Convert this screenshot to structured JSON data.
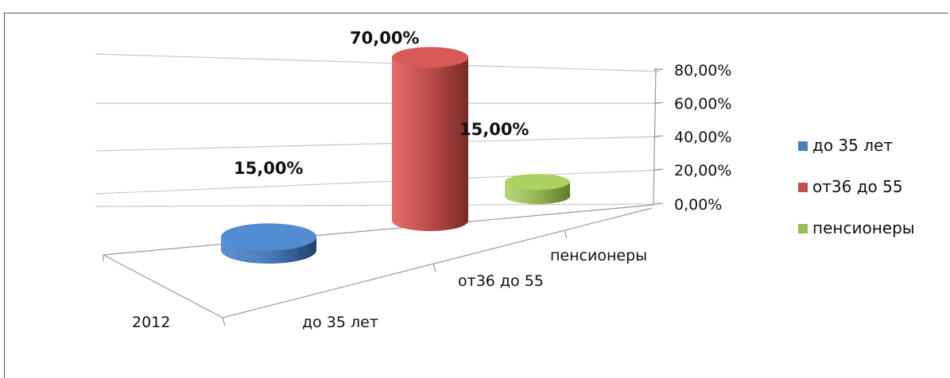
{
  "chart_data": {
    "type": "bar",
    "title": "",
    "xlabel": "",
    "ylabel": "",
    "series_axis": [
      "2012"
    ],
    "categories": [
      "до 35 лет",
      "от36 до 55",
      "пенсионеры"
    ],
    "values": [
      0.15,
      0.7,
      0.15
    ],
    "data_labels": [
      "15,00%",
      "70,00%",
      "15,00%"
    ],
    "colors": [
      "#4a7ebb",
      "#c0504d",
      "#9bbb59"
    ],
    "ylim": [
      0,
      0.8
    ],
    "yticks": [
      0,
      0.2,
      0.4,
      0.6,
      0.8
    ],
    "ytick_labels": [
      "0,00%",
      "20,00%",
      "40,00%",
      "60,00%",
      "80,00%"
    ],
    "grid": true,
    "legend": {
      "placement": "right",
      "entries": [
        "до 35 лет",
        "от36 до 55",
        "пенсионеры"
      ]
    },
    "style": "3d-cylinder"
  }
}
